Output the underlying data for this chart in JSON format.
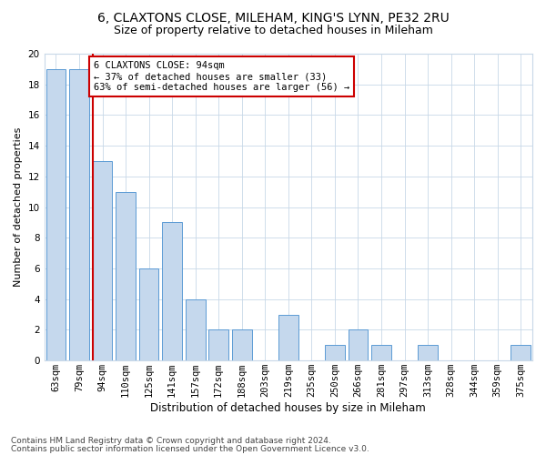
{
  "title1": "6, CLAXTONS CLOSE, MILEHAM, KING'S LYNN, PE32 2RU",
  "title2": "Size of property relative to detached houses in Mileham",
  "xlabel": "Distribution of detached houses by size in Mileham",
  "ylabel": "Number of detached properties",
  "footnote1": "Contains HM Land Registry data © Crown copyright and database right 2024.",
  "footnote2": "Contains public sector information licensed under the Open Government Licence v3.0.",
  "categories": [
    "63sqm",
    "79sqm",
    "94sqm",
    "110sqm",
    "125sqm",
    "141sqm",
    "157sqm",
    "172sqm",
    "188sqm",
    "203sqm",
    "219sqm",
    "235sqm",
    "250sqm",
    "266sqm",
    "281sqm",
    "297sqm",
    "313sqm",
    "328sqm",
    "344sqm",
    "359sqm",
    "375sqm"
  ],
  "values": [
    19,
    19,
    13,
    11,
    6,
    9,
    4,
    2,
    2,
    0,
    3,
    0,
    1,
    2,
    1,
    0,
    1,
    0,
    0,
    0,
    1
  ],
  "bar_color": "#c5d8ed",
  "bar_edge_color": "#5b9bd5",
  "highlight_bar_index": 2,
  "highlight_line_color": "#cc0000",
  "annotation_line1": "6 CLAXTONS CLOSE: 94sqm",
  "annotation_line2": "← 37% of detached houses are smaller (33)",
  "annotation_line3": "63% of semi-detached houses are larger (56) →",
  "annotation_box_color": "#ffffff",
  "annotation_box_edge_color": "#cc0000",
  "ylim": [
    0,
    20
  ],
  "yticks": [
    0,
    2,
    4,
    6,
    8,
    10,
    12,
    14,
    16,
    18,
    20
  ],
  "background_color": "#ffffff",
  "grid_color": "#c8d8e8",
  "title1_fontsize": 10,
  "title2_fontsize": 9,
  "xlabel_fontsize": 8.5,
  "ylabel_fontsize": 8,
  "tick_fontsize": 7.5,
  "annotation_fontsize": 7.5
}
